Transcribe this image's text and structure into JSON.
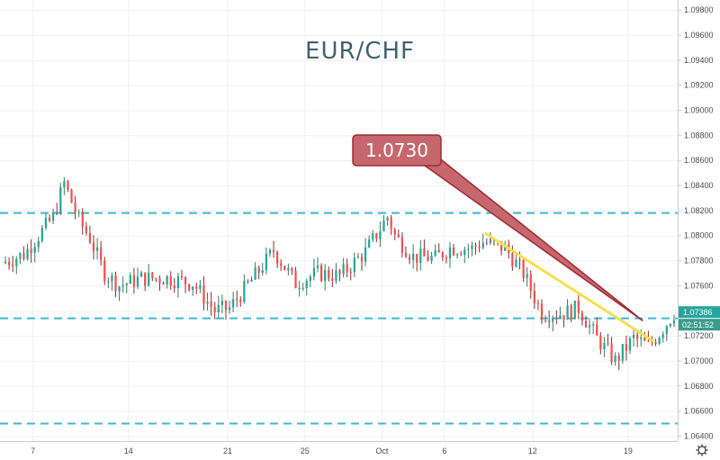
{
  "chart_data": {
    "type": "candlestick",
    "title": "EUR/CHF",
    "y_axis": {
      "ylim": [
        1.0636,
        1.0988
      ],
      "ticks": [
        "1.09800",
        "1.09600",
        "1.09400",
        "1.09200",
        "1.09000",
        "1.08800",
        "1.08600",
        "1.08400",
        "1.08200",
        "1.08000",
        "1.07800",
        "1.07600",
        "1.07400",
        "1.07200",
        "1.07000",
        "1.06800",
        "1.06600",
        "1.06400"
      ],
      "tick_values": [
        1.098,
        1.096,
        1.094,
        1.092,
        1.09,
        1.088,
        1.086,
        1.084,
        1.082,
        1.08,
        1.078,
        1.076,
        1.074,
        1.072,
        1.07,
        1.068,
        1.066,
        1.064
      ]
    },
    "x_axis": {
      "ticks": [
        "7",
        "14",
        "21",
        "25",
        "Oct",
        "6",
        "12",
        "19"
      ],
      "tick_index": [
        8,
        34,
        61,
        82,
        103,
        120,
        144,
        170
      ]
    },
    "grid": true,
    "colors": {
      "up": "#26a69a",
      "down": "#ef5350",
      "wick": "#555555",
      "level_line": "#3fb7d3",
      "trendline": "#f5e050",
      "callout_fill": "#c5676c",
      "callout_stroke": "#9e2b33",
      "badge_price": "#26a69a",
      "badge_time": "#3c9b8c"
    },
    "horizontal_levels": [
      1.0818,
      1.0734,
      1.065
    ],
    "trendline": {
      "from": {
        "index": 131,
        "price": 1.0802
      },
      "to": {
        "index": 177,
        "price": 1.07155
      }
    },
    "callout": {
      "label": "1.0730",
      "target": {
        "index": 174,
        "price": 1.0732
      }
    },
    "last_price": {
      "label": "1.07386",
      "value": 1.07386
    },
    "countdown": "02:51:52",
    "candles": []
  },
  "icons": {
    "settings": "gear-icon"
  }
}
